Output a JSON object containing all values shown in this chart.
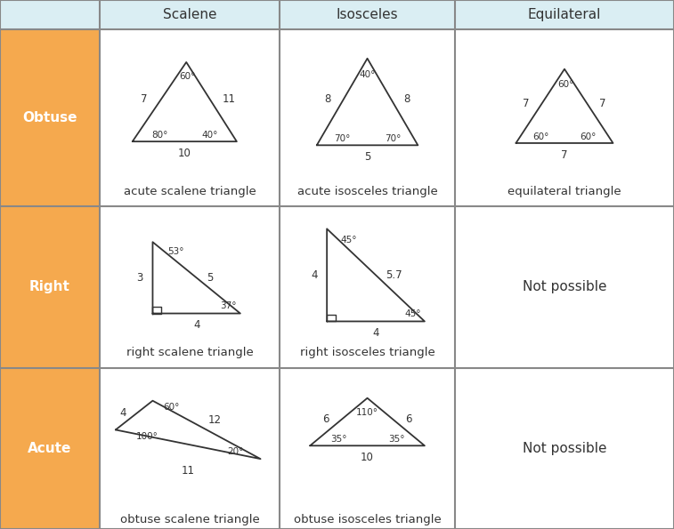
{
  "bg_color": "#ffffff",
  "header_bg": "#daeef3",
  "row_header_bg": "#f5a94e",
  "border_color": "#888888",
  "text_color": "#333333",
  "triangle_color": "#333333",
  "header_labels": [
    "Scalene",
    "Isosceles",
    "Equilateral"
  ],
  "row_labels": [
    "Acute",
    "Right",
    "Obtuse"
  ],
  "cell_labels": [
    [
      "acute scalene triangle",
      "acute isosceles triangle",
      "equilateral triangle"
    ],
    [
      "right scalene triangle",
      "right isosceles triangle",
      "Not possible"
    ],
    [
      "obtuse scalene triangle",
      "obtuse isosceles triangle",
      "Not possible"
    ]
  ],
  "col_borders": [
    0.0,
    0.148,
    0.415,
    0.675,
    1.0
  ],
  "row_borders": [
    0.0,
    0.305,
    0.61,
    0.945,
    1.0
  ]
}
